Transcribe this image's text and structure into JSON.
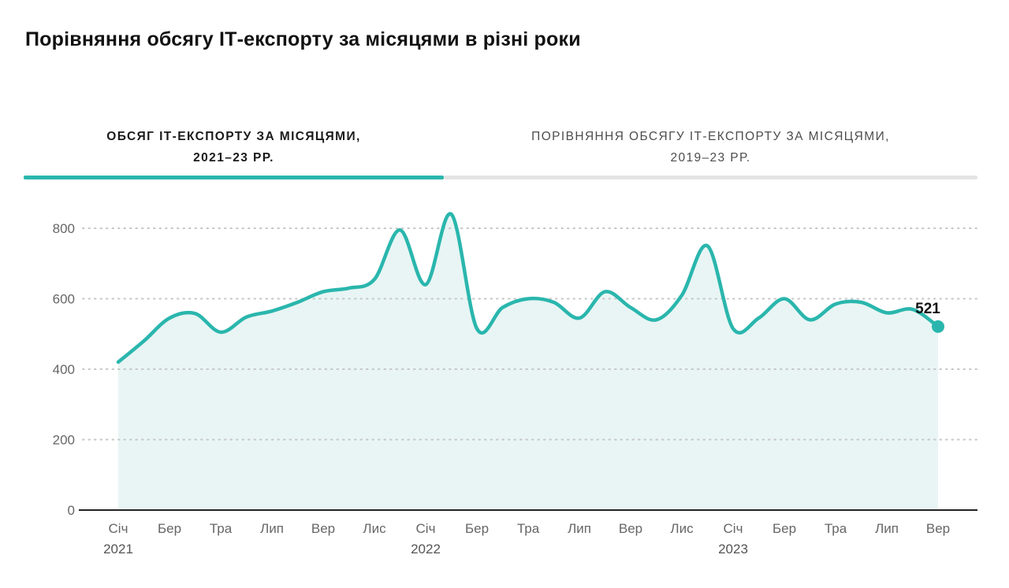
{
  "page": {
    "title": "Порівняння обсягу ІТ-експорту за місяцями в різні роки"
  },
  "tabs": [
    {
      "label_line1": "ОБСЯГ ІТ-ЕКСПОРТУ ЗА МІСЯЦЯМИ,",
      "label_line2": "2021–23 РР.",
      "active": true
    },
    {
      "label_line1": "ПОРІВНЯННЯ ОБСЯГУ ІТ-ЕКСПОРТУ ЗА МІСЯЦЯМИ,",
      "label_line2": "2019–23 РР.",
      "active": false
    }
  ],
  "colors": {
    "accent": "#2AB6AD",
    "fill": "#E8F5F4",
    "grid": "#C6C6C6",
    "axis": "#222222",
    "text_muted": "#666666",
    "inactive_bar": "#E4E4E4"
  },
  "chart_data": {
    "type": "area",
    "title": "Обсяг ІТ-експорту за місяцями, 2021–23 рр.",
    "x_start": "Січ 2021",
    "x_end": "Вер 2023",
    "values": [
      420,
      480,
      545,
      558,
      505,
      548,
      565,
      590,
      620,
      630,
      655,
      795,
      640,
      840,
      515,
      575,
      600,
      590,
      545,
      620,
      575,
      540,
      610,
      750,
      515,
      545,
      600,
      540,
      585,
      590,
      560,
      570,
      521
    ],
    "x_tick_every": 2,
    "x_tick_labels": [
      "Січ",
      "Бер",
      "Тра",
      "Лип",
      "Вер",
      "Лис",
      "Січ",
      "Бер",
      "Тра",
      "Лип",
      "Вер",
      "Лис",
      "Січ",
      "Бер",
      "Тра",
      "Лип",
      "Вер"
    ],
    "x_year_labels": [
      {
        "index": 0,
        "year": "2021"
      },
      {
        "index": 12,
        "year": "2022"
      },
      {
        "index": 24,
        "year": "2023"
      }
    ],
    "y_ticks": [
      0,
      200,
      400,
      600,
      800
    ],
    "ylim": [
      0,
      880
    ],
    "grid": "dotted-horizontal",
    "legend": "none",
    "last_value_label": "521"
  }
}
